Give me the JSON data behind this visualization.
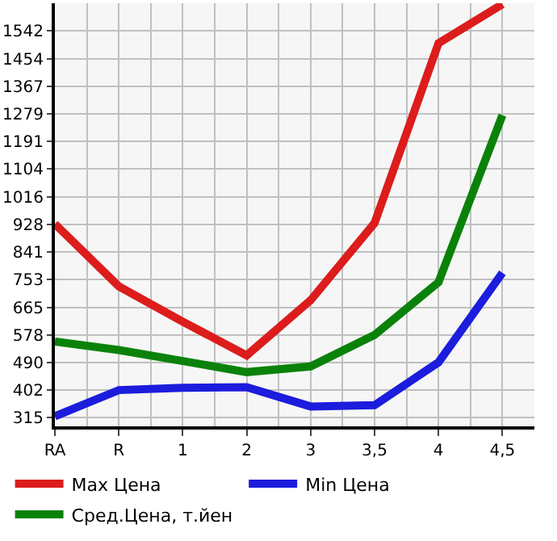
{
  "chart_data": {
    "type": "line",
    "categories": [
      "RA",
      "R",
      "1",
      "2",
      "3",
      "3,5",
      "4",
      "4,5"
    ],
    "series": [
      {
        "name": "Max Цена",
        "color": "#dd1c1c",
        "values": [
          930,
          732,
          620,
          513,
          688,
          933,
          1503,
          1627
        ]
      },
      {
        "name": "Min Цена",
        "color": "#1c1cdd",
        "values": [
          320,
          403,
          410,
          412,
          351,
          355,
          491,
          775
        ]
      },
      {
        "name": "Сред.Цена, т.йен",
        "color": "#0a820a",
        "values": [
          557,
          530,
          495,
          460,
          478,
          578,
          745,
          1275
        ]
      }
    ],
    "ylim": [
      288,
      1630
    ],
    "yticks": [
      315,
      402,
      490,
      578,
      665,
      753,
      841,
      928,
      1016,
      1104,
      1191,
      1279,
      1367,
      1454,
      1542
    ],
    "grid": true,
    "legend": "bottom",
    "marker": "none",
    "line_style": "solid"
  }
}
